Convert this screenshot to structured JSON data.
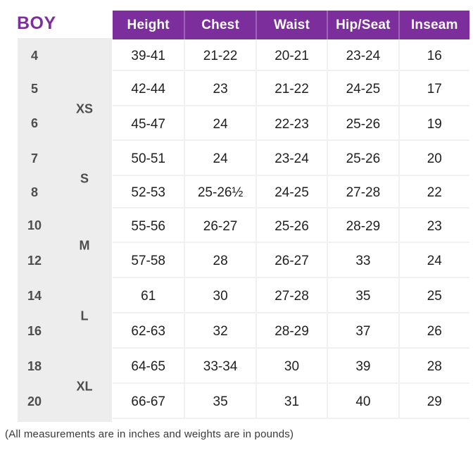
{
  "title": "BOY",
  "footnote": "(All measurements are in inches and weights are in pounds)",
  "colors": {
    "accent_purple": "#7C2E9D",
    "panel_gray": "#EDEDED",
    "grid_line": "#F1F1F1",
    "header_text": "#FFFFFF",
    "data_text": "#1F1F1F",
    "size_text": "#4D4D4D"
  },
  "table": {
    "columns": [
      "Height",
      "Chest",
      "Waist",
      "Hip/Seat",
      "Inseam"
    ],
    "groups": [
      {
        "label": "XS",
        "spans_sizes": "5-6"
      },
      {
        "label": "S",
        "spans_sizes": "7-8"
      },
      {
        "label": "M",
        "spans_sizes": "10-12"
      },
      {
        "label": "L",
        "spans_sizes": "14-16"
      },
      {
        "label": "XL",
        "spans_sizes": "18-20"
      }
    ],
    "rows": [
      {
        "size": "4",
        "values": [
          "39-41",
          "21-22",
          "20-21",
          "23-24",
          "16"
        ]
      },
      {
        "size": "5",
        "values": [
          "42-44",
          "23",
          "21-22",
          "24-25",
          "17"
        ]
      },
      {
        "size": "6",
        "values": [
          "45-47",
          "24",
          "22-23",
          "25-26",
          "19"
        ]
      },
      {
        "size": "7",
        "values": [
          "50-51",
          "24",
          "23-24",
          "25-26",
          "20"
        ]
      },
      {
        "size": "8",
        "values": [
          "52-53",
          "25-26½",
          "24-25",
          "27-28",
          "22"
        ]
      },
      {
        "size": "10",
        "values": [
          "55-56",
          "26-27",
          "25-26",
          "28-29",
          "23"
        ]
      },
      {
        "size": "12",
        "values": [
          "57-58",
          "28",
          "26-27",
          "33",
          "24"
        ]
      },
      {
        "size": "14",
        "values": [
          "61",
          "30",
          "27-28",
          "35",
          "25"
        ]
      },
      {
        "size": "16",
        "values": [
          "62-63",
          "32",
          "28-29",
          "37",
          "26"
        ]
      },
      {
        "size": "18",
        "values": [
          "64-65",
          "33-34",
          "30",
          "39",
          "28"
        ]
      },
      {
        "size": "20",
        "values": [
          "66-67",
          "35",
          "31",
          "40",
          "29"
        ]
      }
    ]
  }
}
